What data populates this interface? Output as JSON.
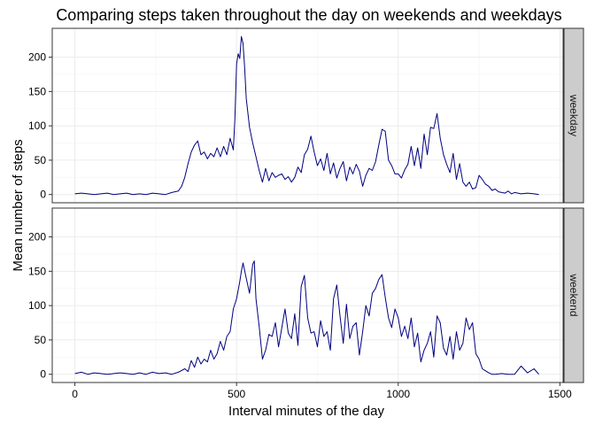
{
  "chart_data": {
    "type": "line",
    "title": "Comparing steps taken throughout the day on weekends and weekdays",
    "xlabel": "Interval minutes of the day",
    "ylabel": "Mean number of steps",
    "xlim": [
      -70,
      1510
    ],
    "ylim": [
      -12,
      242
    ],
    "x_ticks": [
      0,
      500,
      1000,
      1500
    ],
    "y_ticks": [
      0,
      50,
      100,
      150,
      200
    ],
    "grid": true,
    "line_color": "#000080",
    "panels": [
      {
        "label": "weekday",
        "series": [
          {
            "x": [
              0,
              20,
              40,
              60,
              80,
              100,
              120,
              140,
              160,
              180,
              200,
              220,
              240,
              260,
              280,
              300,
              320,
              330,
              340,
              350,
              360,
              370,
              380,
              390,
              400,
              410,
              420,
              430,
              440,
              450,
              460,
              470,
              480,
              490,
              495,
              500,
              505,
              510,
              515,
              520,
              525,
              530,
              540,
              550,
              560,
              570,
              580,
              590,
              600,
              610,
              620,
              630,
              640,
              650,
              660,
              670,
              680,
              690,
              700,
              710,
              720,
              730,
              740,
              750,
              760,
              770,
              780,
              790,
              800,
              810,
              820,
              830,
              840,
              850,
              860,
              870,
              880,
              890,
              900,
              910,
              920,
              930,
              940,
              950,
              960,
              970,
              980,
              990,
              1000,
              1010,
              1020,
              1030,
              1040,
              1050,
              1060,
              1070,
              1080,
              1090,
              1100,
              1110,
              1120,
              1130,
              1140,
              1150,
              1160,
              1170,
              1180,
              1190,
              1200,
              1210,
              1220,
              1230,
              1240,
              1250,
              1260,
              1270,
              1280,
              1290,
              1300,
              1310,
              1320,
              1330,
              1340,
              1350,
              1360,
              1380,
              1400,
              1420,
              1435
            ],
            "y": [
              1,
              2,
              1,
              0,
              1,
              2,
              0,
              1,
              2,
              0,
              1,
              0,
              2,
              1,
              0,
              3,
              5,
              12,
              25,
              45,
              62,
              72,
              78,
              58,
              62,
              52,
              60,
              55,
              68,
              55,
              70,
              58,
              82,
              65,
              110,
              190,
              205,
              198,
              230,
              220,
              185,
              140,
              98,
              75,
              55,
              35,
              18,
              38,
              20,
              32,
              25,
              28,
              30,
              22,
              26,
              18,
              25,
              40,
              32,
              58,
              66,
              85,
              62,
              42,
              52,
              35,
              60,
              30,
              46,
              24,
              38,
              48,
              20,
              40,
              30,
              44,
              34,
              12,
              28,
              38,
              35,
              48,
              72,
              95,
              92,
              50,
              42,
              30,
              30,
              24,
              36,
              44,
              70,
              42,
              68,
              38,
              88,
              58,
              98,
              96,
              118,
              82,
              58,
              44,
              32,
              60,
              22,
              45,
              18,
              12,
              18,
              8,
              10,
              28,
              22,
              15,
              12,
              6,
              8,
              4,
              3,
              2,
              5,
              1,
              3,
              1,
              2,
              1,
              0
            ]
          }
        ]
      },
      {
        "label": "weekend",
        "series": [
          {
            "x": [
              0,
              20,
              40,
              60,
              80,
              100,
              120,
              140,
              160,
              180,
              200,
              220,
              240,
              260,
              280,
              300,
              320,
              340,
              350,
              360,
              370,
              380,
              390,
              400,
              410,
              420,
              430,
              440,
              450,
              460,
              470,
              480,
              490,
              500,
              510,
              515,
              520,
              530,
              540,
              550,
              555,
              560,
              570,
              580,
              590,
              600,
              610,
              620,
              630,
              640,
              650,
              660,
              670,
              680,
              690,
              700,
              710,
              720,
              730,
              740,
              750,
              760,
              770,
              780,
              790,
              800,
              810,
              820,
              830,
              840,
              850,
              860,
              870,
              880,
              890,
              900,
              910,
              920,
              930,
              940,
              950,
              960,
              970,
              980,
              990,
              1000,
              1010,
              1020,
              1030,
              1040,
              1050,
              1060,
              1070,
              1080,
              1090,
              1100,
              1110,
              1120,
              1130,
              1140,
              1150,
              1160,
              1170,
              1180,
              1190,
              1200,
              1210,
              1220,
              1230,
              1240,
              1250,
              1260,
              1270,
              1280,
              1290,
              1300,
              1320,
              1340,
              1360,
              1380,
              1400,
              1420,
              1435
            ],
            "y": [
              1,
              3,
              0,
              2,
              1,
              0,
              1,
              2,
              1,
              0,
              2,
              0,
              3,
              1,
              2,
              0,
              3,
              8,
              4,
              20,
              10,
              25,
              15,
              22,
              18,
              35,
              22,
              30,
              48,
              35,
              55,
              62,
              95,
              110,
              135,
              150,
              162,
              140,
              118,
              160,
              165,
              110,
              70,
              22,
              35,
              58,
              55,
              75,
              40,
              68,
              95,
              60,
              52,
              88,
              42,
              128,
              144,
              82,
              60,
              62,
              40,
              78,
              55,
              62,
              35,
              110,
              130,
              85,
              45,
              102,
              52,
              70,
              75,
              28,
              62,
              100,
              85,
              118,
              125,
              138,
              145,
              112,
              82,
              68,
              95,
              82,
              55,
              70,
              52,
              82,
              40,
              60,
              18,
              35,
              45,
              62,
              25,
              85,
              75,
              38,
              28,
              55,
              22,
              62,
              35,
              45,
              82,
              65,
              75,
              30,
              22,
              8,
              5,
              2,
              0,
              0,
              1,
              0,
              0,
              12,
              2,
              8,
              0
            ]
          }
        ]
      }
    ]
  }
}
